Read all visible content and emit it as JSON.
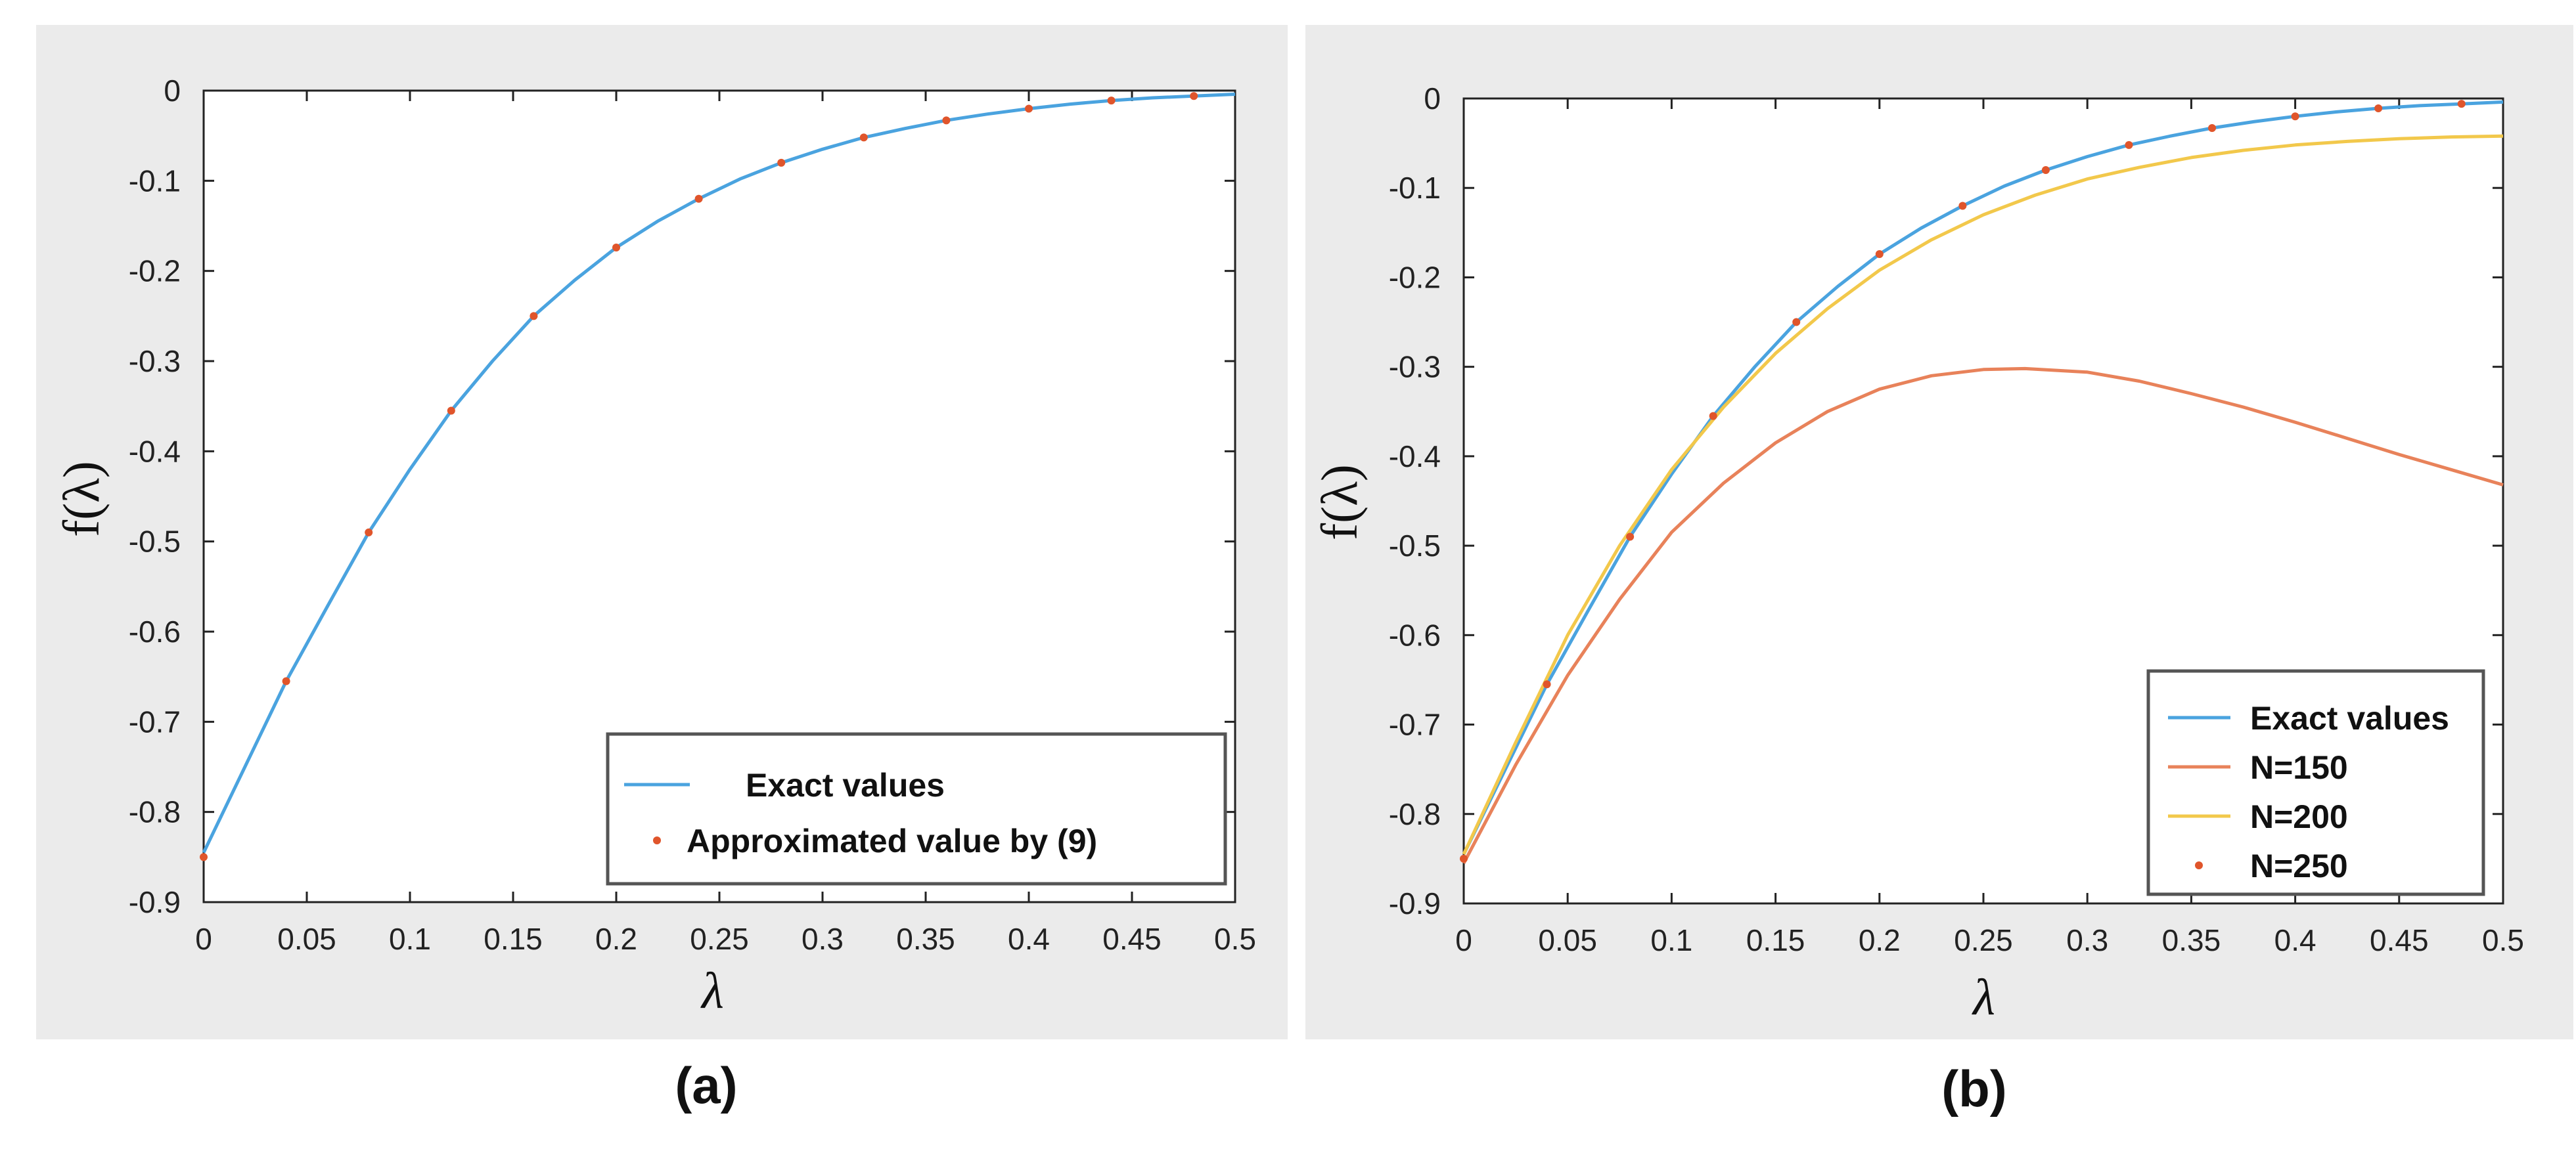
{
  "chart_data": [
    {
      "type": "line",
      "caption": "(a)",
      "xlabel": "λ",
      "ylabel": "f(λ)",
      "xlim": [
        0,
        0.5
      ],
      "ylim": [
        -0.9,
        0
      ],
      "xticks": [
        "0",
        "0.05",
        "0.1",
        "0.15",
        "0.2",
        "0.25",
        "0.3",
        "0.35",
        "0.4",
        "0.45",
        "0.5"
      ],
      "yticks": [
        "0",
        "-0.1",
        "-0.2",
        "-0.3",
        "-0.4",
        "-0.5",
        "-0.6",
        "-0.7",
        "-0.8",
        "-0.9"
      ],
      "legend_position": "bottom-right",
      "series": [
        {
          "name": "Exact values",
          "style": "line",
          "color": "#4aa3df",
          "x": [
            0,
            0.02,
            0.04,
            0.06,
            0.08,
            0.1,
            0.12,
            0.14,
            0.16,
            0.18,
            0.2,
            0.22,
            0.24,
            0.26,
            0.28,
            0.3,
            0.32,
            0.34,
            0.36,
            0.38,
            0.4,
            0.42,
            0.44,
            0.46,
            0.48,
            0.5
          ],
          "y": [
            -0.845,
            -0.75,
            -0.655,
            -0.572,
            -0.49,
            -0.42,
            -0.355,
            -0.3,
            -0.25,
            -0.21,
            -0.174,
            -0.145,
            -0.12,
            -0.098,
            -0.08,
            -0.065,
            -0.052,
            -0.042,
            -0.033,
            -0.026,
            -0.02,
            -0.015,
            -0.011,
            -0.008,
            -0.006,
            -0.004
          ]
        },
        {
          "name": "Approximated value by (9)",
          "style": "points",
          "color": "#e0552b",
          "x": [
            0,
            0.04,
            0.08,
            0.12,
            0.16,
            0.2,
            0.24,
            0.28,
            0.32,
            0.36,
            0.4,
            0.44,
            0.48
          ],
          "y": [
            -0.85,
            -0.655,
            -0.49,
            -0.355,
            -0.25,
            -0.174,
            -0.12,
            -0.08,
            -0.052,
            -0.033,
            -0.02,
            -0.011,
            -0.006
          ]
        }
      ]
    },
    {
      "type": "line",
      "caption": "(b)",
      "xlabel": "λ",
      "ylabel": "f(λ)",
      "xlim": [
        0,
        0.5
      ],
      "ylim": [
        -0.9,
        0
      ],
      "xticks": [
        "0",
        "0.05",
        "0.1",
        "0.15",
        "0.2",
        "0.25",
        "0.3",
        "0.35",
        "0.4",
        "0.45",
        "0.5"
      ],
      "yticks": [
        "0",
        "-0.1",
        "-0.2",
        "-0.3",
        "-0.4",
        "-0.5",
        "-0.6",
        "-0.7",
        "-0.8",
        "-0.9"
      ],
      "legend_position": "bottom-right",
      "series": [
        {
          "name": "Exact values",
          "style": "line",
          "color": "#4aa3df",
          "x": [
            0,
            0.02,
            0.04,
            0.06,
            0.08,
            0.1,
            0.12,
            0.14,
            0.16,
            0.18,
            0.2,
            0.22,
            0.24,
            0.26,
            0.28,
            0.3,
            0.32,
            0.34,
            0.36,
            0.38,
            0.4,
            0.42,
            0.44,
            0.46,
            0.48,
            0.5
          ],
          "y": [
            -0.845,
            -0.75,
            -0.655,
            -0.572,
            -0.49,
            -0.42,
            -0.355,
            -0.3,
            -0.25,
            -0.21,
            -0.174,
            -0.145,
            -0.12,
            -0.098,
            -0.08,
            -0.065,
            -0.052,
            -0.042,
            -0.033,
            -0.026,
            -0.02,
            -0.015,
            -0.011,
            -0.008,
            -0.006,
            -0.004
          ]
        },
        {
          "name": "N=150",
          "style": "line",
          "color": "#e8825a",
          "x": [
            0,
            0.025,
            0.05,
            0.075,
            0.1,
            0.125,
            0.15,
            0.175,
            0.2,
            0.225,
            0.25,
            0.27,
            0.3,
            0.325,
            0.35,
            0.375,
            0.4,
            0.425,
            0.45,
            0.475,
            0.5
          ],
          "y": [
            -0.855,
            -0.745,
            -0.645,
            -0.56,
            -0.485,
            -0.43,
            -0.385,
            -0.35,
            -0.325,
            -0.31,
            -0.303,
            -0.302,
            -0.306,
            -0.316,
            -0.33,
            -0.345,
            -0.362,
            -0.38,
            -0.398,
            -0.415,
            -0.432
          ]
        },
        {
          "name": "N=200",
          "style": "line",
          "color": "#f2c84b",
          "x": [
            0,
            0.025,
            0.05,
            0.075,
            0.1,
            0.125,
            0.15,
            0.175,
            0.2,
            0.225,
            0.25,
            0.275,
            0.3,
            0.325,
            0.35,
            0.375,
            0.4,
            0.425,
            0.45,
            0.475,
            0.5
          ],
          "y": [
            -0.845,
            -0.72,
            -0.6,
            -0.5,
            -0.415,
            -0.345,
            -0.285,
            -0.235,
            -0.192,
            -0.158,
            -0.13,
            -0.108,
            -0.09,
            -0.077,
            -0.066,
            -0.058,
            -0.052,
            -0.048,
            -0.045,
            -0.043,
            -0.042
          ]
        },
        {
          "name": "N=250",
          "style": "points",
          "color": "#e0552b",
          "x": [
            0,
            0.04,
            0.08,
            0.12,
            0.16,
            0.2,
            0.24,
            0.28,
            0.32,
            0.36,
            0.4,
            0.44,
            0.48
          ],
          "y": [
            -0.85,
            -0.655,
            -0.49,
            -0.355,
            -0.25,
            -0.174,
            -0.12,
            -0.08,
            -0.052,
            -0.033,
            -0.02,
            -0.011,
            -0.006
          ]
        }
      ]
    }
  ]
}
